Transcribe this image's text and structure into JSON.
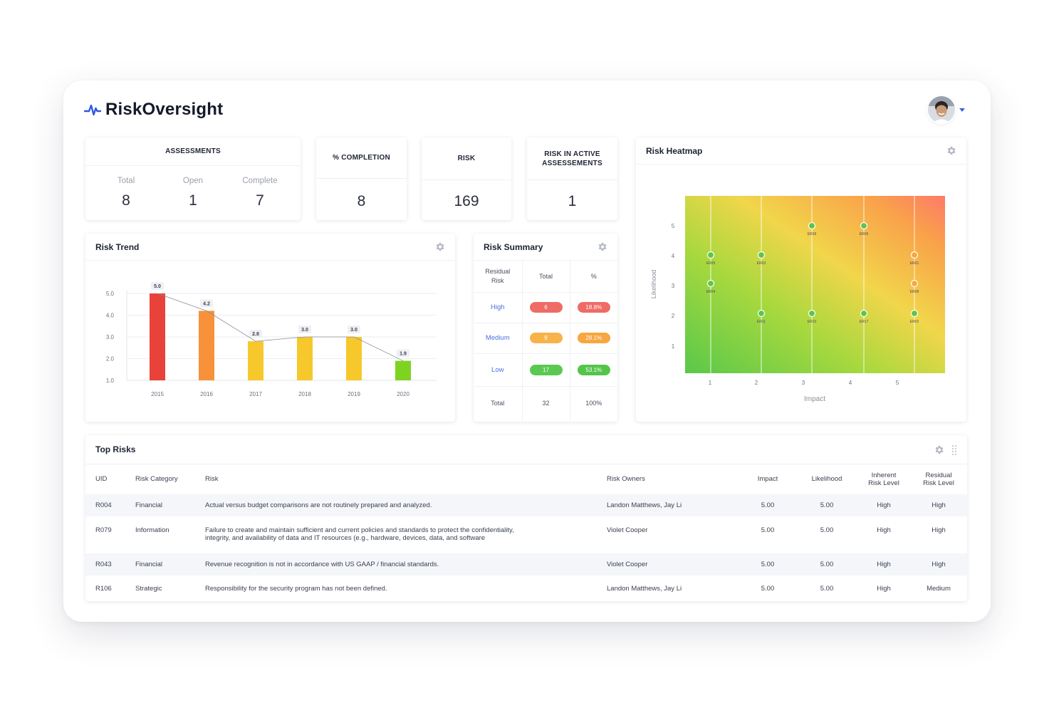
{
  "app": {
    "name": "RiskOversight"
  },
  "stats": {
    "assessments": {
      "title": "ASSESSMENTS",
      "total_label": "Total",
      "total": "8",
      "open_label": "Open",
      "open": "1",
      "complete_label": "Complete",
      "complete": "7"
    },
    "completion": {
      "title": "% COMPLETION",
      "value": "8"
    },
    "risk": {
      "title": "RISK",
      "value": "169"
    },
    "active": {
      "title_line1": "RISK IN ACTIVE",
      "title_line2": "ASSESSEMENTS",
      "value": "1"
    }
  },
  "trend": {
    "title": "Risk Trend",
    "chart_data": {
      "type": "bar",
      "categories": [
        "2015",
        "2016",
        "2017",
        "2018",
        "2019",
        "2020"
      ],
      "values": [
        5.0,
        4.2,
        2.8,
        3.0,
        3.0,
        1.9
      ],
      "value_labels": [
        "5.0",
        "4.2",
        "2.8",
        "3.0",
        "3.0",
        "1.9"
      ],
      "y_ticks": [
        "5.0",
        "4.0",
        "3.0",
        "2.0",
        "1.0"
      ],
      "bar_colors": [
        "#e8423a",
        "#f7923a",
        "#f6c82c",
        "#f6c82c",
        "#f6c82c",
        "#7ed321"
      ],
      "line_overlay": true,
      "grid": true
    }
  },
  "summary": {
    "title": "Risk Summary",
    "head_residual_1": "Residual",
    "head_residual_2": "Risk",
    "head_total": "Total",
    "head_pct": "%",
    "rows": [
      {
        "level": "High",
        "total": "6",
        "pct": "18.8%",
        "color": "#ef6b65",
        "pct_color": "#ef6b65"
      },
      {
        "level": "Medium",
        "total": "9",
        "pct": "28.1%",
        "color": "#f7b24a",
        "pct_color": "#f7a640"
      },
      {
        "level": "Low",
        "total": "17",
        "pct": "53.1%",
        "color": "#5bc951",
        "pct_color": "#53c54a"
      }
    ],
    "footer_label": "Total",
    "footer_total": "32",
    "footer_pct": "100%"
  },
  "heatmap": {
    "title": "Risk Heatmap",
    "chart_data": {
      "type": "scatter",
      "xlabel": "Impact",
      "ylabel": "Likelihood",
      "x_ticks": [
        "1",
        "2",
        "3",
        "4",
        "5"
      ],
      "y_ticks": [
        "1",
        "2",
        "3",
        "4",
        "5"
      ],
      "points": [
        {
          "label": "ER05",
          "x": 1,
          "y": 4,
          "color": "green"
        },
        {
          "label": "ER04",
          "x": 1,
          "y": 3,
          "color": "green"
        },
        {
          "label": "ER03",
          "x": 2,
          "y": 4,
          "color": "green"
        },
        {
          "label": "ER11",
          "x": 2,
          "y": 2,
          "color": "green"
        },
        {
          "label": "ER39",
          "x": 3,
          "y": 5,
          "color": "green"
        },
        {
          "label": "ER10",
          "x": 3,
          "y": 2,
          "color": "green"
        },
        {
          "label": "ER06",
          "x": 4,
          "y": 5,
          "color": "green"
        },
        {
          "label": "ER17",
          "x": 4,
          "y": 2,
          "color": "green"
        },
        {
          "label": "ER01",
          "x": 5,
          "y": 4,
          "color": "orange"
        },
        {
          "label": "ER08",
          "x": 5,
          "y": 3,
          "color": "orange"
        },
        {
          "label": "ER02",
          "x": 5,
          "y": 2,
          "color": "green"
        }
      ]
    }
  },
  "top_risks": {
    "title": "Top Risks",
    "columns": {
      "uid": "UID",
      "category": "Risk Category",
      "risk": "Risk",
      "owners": "Risk Owners",
      "impact": "Impact",
      "likelihood": "Likelihood",
      "inherent_1": "Inherent",
      "inherent_2": "Risk Level",
      "residual_1": "Residual",
      "residual_2": "Risk Level"
    },
    "rows": [
      {
        "uid": "R004",
        "category": "Financial",
        "risk": "Actual versus budget comparisons are not routinely prepared and analyzed.",
        "owners": "Landon Matthews, Jay Li",
        "impact": "5.00",
        "likelihood": "5.00",
        "inherent": "High",
        "residual": "High"
      },
      {
        "uid": "R079",
        "category": "Information",
        "risk": "Failure to create and maintain sufficient and current policies and standards to protect the confidentiality, integrity, and availability of data and IT resources (e.g., hardware, devices, data, and software",
        "owners": "Violet Cooper",
        "impact": "5.00",
        "likelihood": "5.00",
        "inherent": "High",
        "residual": "High"
      },
      {
        "uid": "R043",
        "category": "Financial",
        "risk": "Revenue recognition is not in accordance with US GAAP / financial standards.",
        "owners": "Violet Cooper",
        "impact": "5.00",
        "likelihood": "5.00",
        "inherent": "High",
        "residual": "High"
      },
      {
        "uid": "R106",
        "category": "Strategic",
        "risk": "Responsibility for the security program has not been defined.",
        "owners": "Landon Matthews, Jay Li",
        "impact": "5.00",
        "likelihood": "5.00",
        "inherent": "High",
        "residual": "Medium"
      }
    ]
  }
}
